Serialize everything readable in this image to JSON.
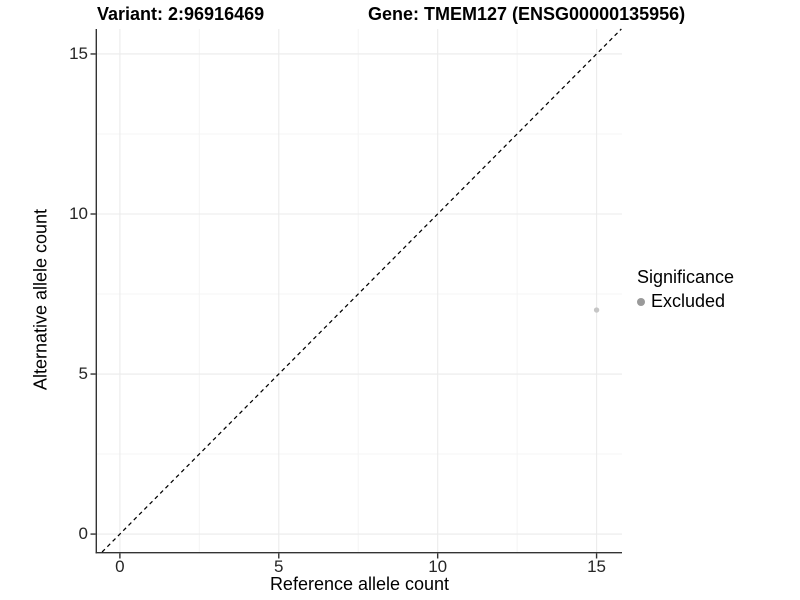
{
  "header": {
    "variant_label": "Variant: 2:96916469",
    "gene_label": "Gene: TMEM127 (ENSG00000135956)"
  },
  "chart_data": {
    "type": "scatter",
    "title": "Variant: 2:96916469    Gene: TMEM127 (ENSG00000135956)",
    "xlabel": "Reference allele count",
    "ylabel": "Alternative allele count",
    "xlim": [
      -0.72,
      15.8
    ],
    "ylim": [
      -0.56,
      15.78
    ],
    "x_ticks": [
      0,
      5,
      10,
      15
    ],
    "y_ticks": [
      0,
      5,
      10,
      15
    ],
    "x_minor_gridlines": [
      2.5,
      7.5,
      12.5
    ],
    "y_minor_gridlines": [
      2.5,
      7.5,
      12.5
    ],
    "grid": true,
    "points": [
      {
        "x": 15,
        "y": 7,
        "series": "Excluded"
      }
    ],
    "identity_line": {
      "style": "dashed",
      "slope": 1,
      "intercept": 0
    },
    "legend": {
      "position": "right",
      "title": "Significance",
      "items": [
        {
          "label": "Excluded",
          "color": "#9a9a9a"
        }
      ]
    },
    "colors": {
      "point": "#c6c6c6",
      "legend_dot": "#9a9a9a",
      "grid_major": "#ebebeb",
      "grid_minor": "#f4f4f4",
      "axis_line": "#333333",
      "dashed_line": "#000000",
      "tick_label": "#262626",
      "text": "#000000"
    }
  }
}
